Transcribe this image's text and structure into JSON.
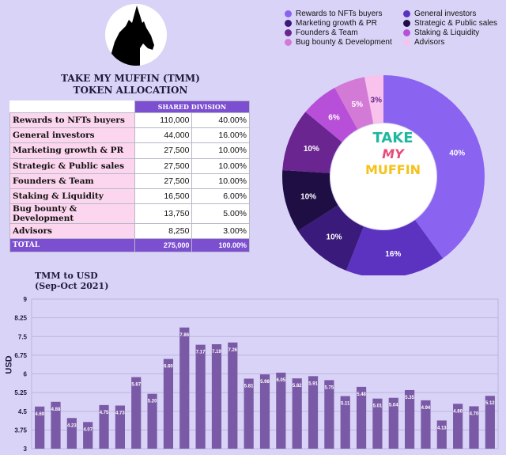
{
  "header": {
    "title": "TAKE MY MUFFIN (TMM)",
    "subtitle": "TOKEN ALLOCATION",
    "shared_division_label": "SHARED DIVISION"
  },
  "brand": {
    "line1": "TAKE",
    "line2": "MY",
    "line3": "MUFFIN"
  },
  "allocation": {
    "rows": [
      {
        "label": "Rewards to NFTs buyers",
        "amount": "110,000",
        "percent": "40.00%"
      },
      {
        "label": "General investors",
        "amount": "44,000",
        "percent": "16.00%"
      },
      {
        "label": "Marketing growth & PR",
        "amount": "27,500",
        "percent": "10.00%"
      },
      {
        "label": "Strategic & Public sales",
        "amount": "27,500",
        "percent": "10.00%"
      },
      {
        "label": "Founders & Team",
        "amount": "27,500",
        "percent": "10.00%"
      },
      {
        "label": "Staking & Liquidity",
        "amount": "16,500",
        "percent": "6.00%"
      },
      {
        "label": "Bug bounty & Development",
        "amount": "13,750",
        "percent": "5.00%"
      },
      {
        "label": "Advisors",
        "amount": "8,250",
        "percent": "3.00%"
      }
    ],
    "total": {
      "label": "TOTAL",
      "amount": "275,000",
      "percent": "100.00%"
    }
  },
  "chart_data": [
    {
      "type": "pie",
      "title": "",
      "legend_placement": "top",
      "categories": [
        "Rewards to NFTs buyers",
        "General investors",
        "Marketing growth & PR",
        "Strategic & Public sales",
        "Founders & Team",
        "Staking & Liquidity",
        "Bug bounty & Development",
        "Advisors"
      ],
      "values": [
        40,
        16,
        10,
        10,
        10,
        6,
        5,
        3
      ],
      "labels": [
        "40%",
        "16%",
        "10%",
        "10%",
        "10%",
        "6%",
        "5%",
        "3%"
      ],
      "colors": [
        "#8a63f0",
        "#5b33c0",
        "#3a1a7a",
        "#1e0e44",
        "#6a2590",
        "#b84fd8",
        "#d37ad6",
        "#f8c2ec"
      ]
    },
    {
      "type": "bar",
      "title": "TMM to USD",
      "subtitle": "(Sep-Oct 2021)",
      "xlabel": "",
      "ylabel": "USD",
      "ylim": [
        3,
        9
      ],
      "yticks": [
        "3",
        "3.75",
        "4.5",
        "5.25",
        "6",
        "6.75",
        "7.5",
        "8.25",
        "9"
      ],
      "grid": true,
      "color": "#7a5aa6",
      "values": [
        4.69,
        4.88,
        4.23,
        4.07,
        4.75,
        4.73,
        5.87,
        5.2,
        6.6,
        7.86,
        7.17,
        7.19,
        7.26,
        5.81,
        5.98,
        6.05,
        5.82,
        5.91,
        5.75,
        5.11,
        5.48,
        5.01,
        5.04,
        5.35,
        4.94,
        4.13,
        4.8,
        4.7,
        5.12
      ],
      "labels": [
        "4.69",
        "4.88",
        "4.23",
        "4.07",
        "4.75",
        "4.73",
        "5.87",
        "5.20",
        "6.60",
        "7.86",
        "7.17",
        "7.19",
        "7.26",
        "5.81",
        "5.98",
        "6.05",
        "5.82",
        "5.91",
        "5.75",
        "5.11",
        "5.48",
        "5.01",
        "5.04",
        "5.35",
        "4.94",
        "4.13",
        "4.80",
        "4.70",
        "5.12"
      ]
    }
  ]
}
